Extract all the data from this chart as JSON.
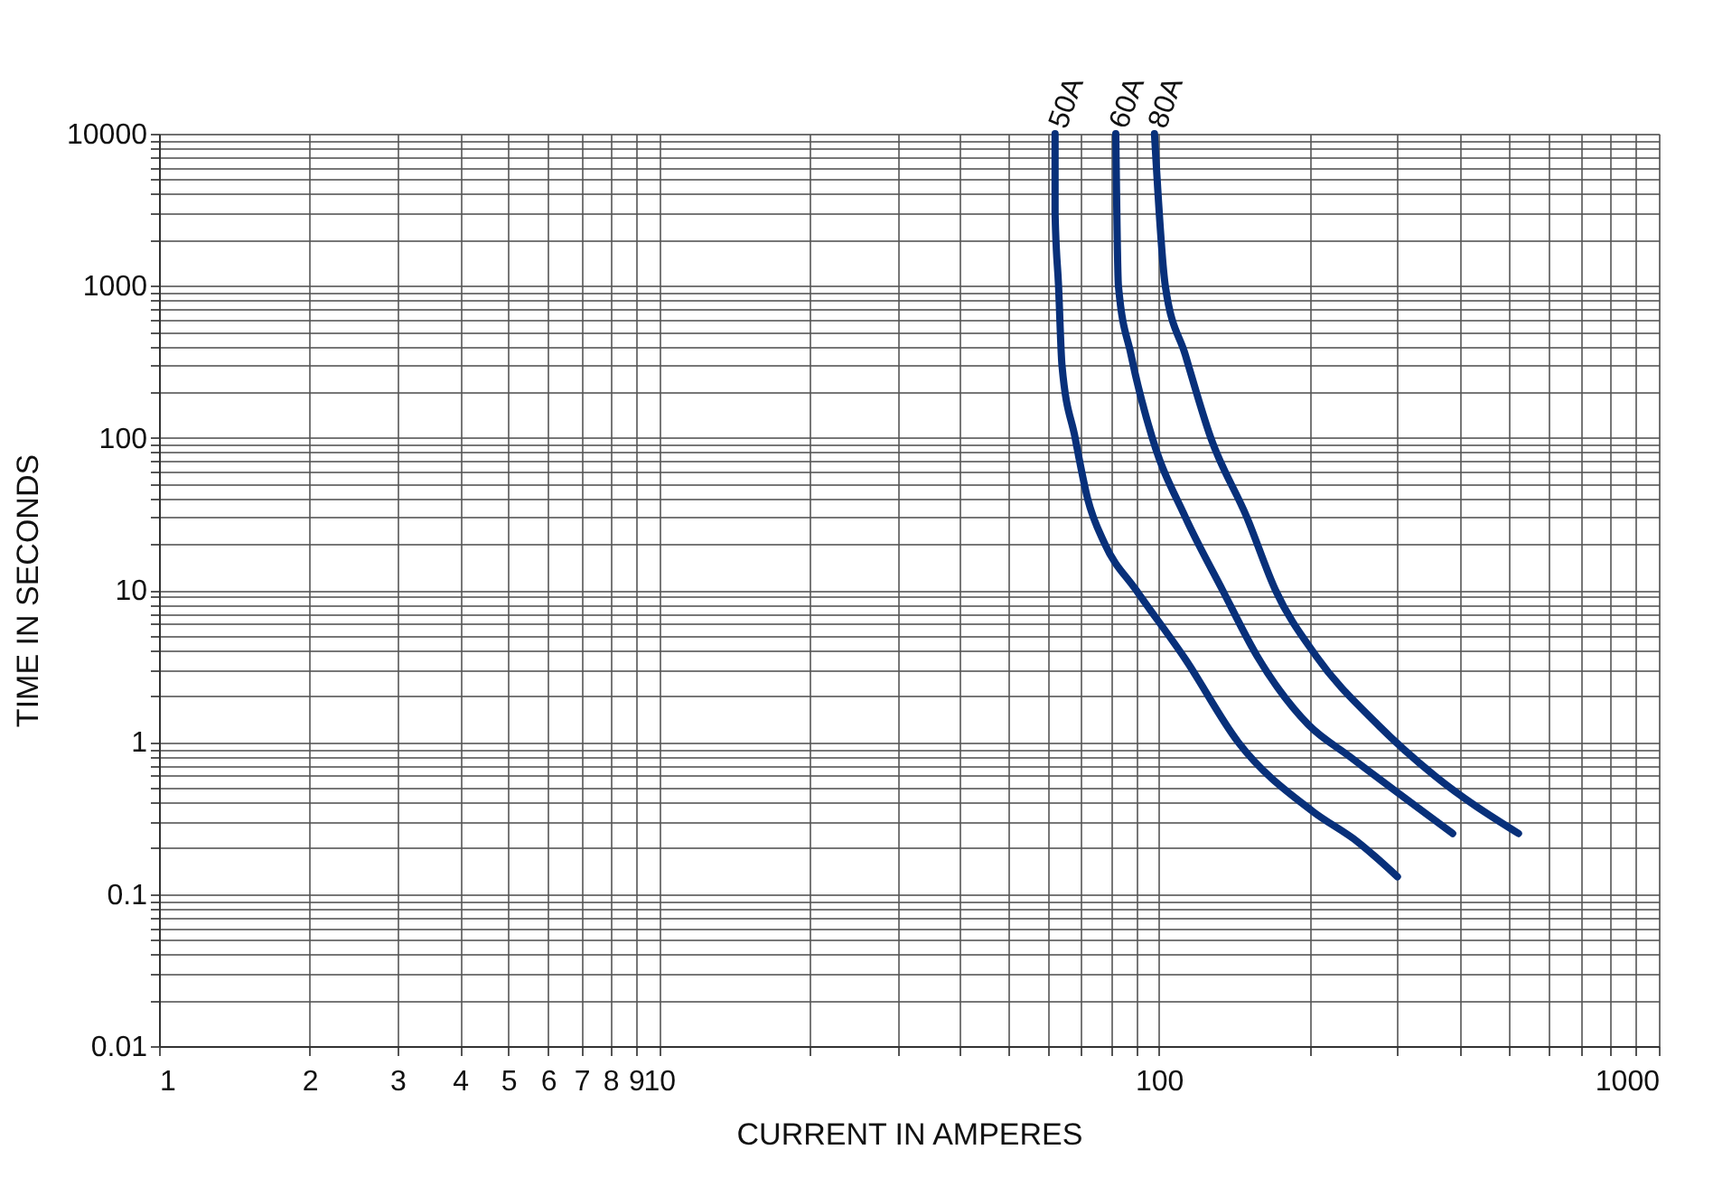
{
  "chart_data": {
    "type": "line",
    "xlabel": "CURRENT IN AMPERES",
    "ylabel": "TIME IN SECONDS",
    "log": "xy",
    "grid": true,
    "legend": false,
    "marker": "none",
    "line_style": "solid",
    "xlim": [
      1,
      1000
    ],
    "ylim": [
      0.01,
      10000
    ],
    "xticks": [
      1,
      2,
      3,
      4,
      5,
      6,
      7,
      8,
      9,
      10,
      {
        "value": 20,
        "label": null
      },
      {
        "value": 30,
        "label": null
      },
      {
        "value": 40,
        "label": null
      },
      {
        "value": 50,
        "label": null
      },
      {
        "value": 60,
        "label": null
      },
      {
        "value": 70,
        "label": null
      },
      {
        "value": 80,
        "label": null
      },
      {
        "value": 90,
        "label": null
      },
      100,
      {
        "value": 200,
        "label": null
      },
      {
        "value": 300,
        "label": null
      },
      {
        "value": 400,
        "label": null
      },
      {
        "value": 500,
        "label": null
      },
      {
        "value": 600,
        "label": null
      },
      {
        "value": 700,
        "label": null
      },
      {
        "value": 800,
        "label": null
      },
      {
        "value": 900,
        "label": null
      },
      1000
    ],
    "yticks": [
      0.01,
      {
        "value": 0.02,
        "label": null
      },
      {
        "value": 0.03,
        "label": null
      },
      {
        "value": 0.04,
        "label": null
      },
      {
        "value": 0.05,
        "label": null
      },
      {
        "value": 0.06,
        "label": null
      },
      {
        "value": 0.07,
        "label": null
      },
      {
        "value": 0.08,
        "label": null
      },
      {
        "value": 0.09,
        "label": null
      },
      0.1,
      {
        "value": 0.2,
        "label": null
      },
      {
        "value": 0.3,
        "label": null
      },
      {
        "value": 0.4,
        "label": null
      },
      {
        "value": 0.5,
        "label": null
      },
      {
        "value": 0.6,
        "label": null
      },
      {
        "value": 0.7,
        "label": null
      },
      {
        "value": 0.8,
        "label": null
      },
      {
        "value": 0.9,
        "label": null
      },
      1,
      {
        "value": 2,
        "label": null
      },
      {
        "value": 3,
        "label": null
      },
      {
        "value": 4,
        "label": null
      },
      {
        "value": 5,
        "label": null
      },
      {
        "value": 6,
        "label": null
      },
      {
        "value": 7,
        "label": null
      },
      {
        "value": 8,
        "label": null
      },
      {
        "value": 9,
        "label": null
      },
      10,
      {
        "value": 20,
        "label": null
      },
      {
        "value": 30,
        "label": null
      },
      {
        "value": 40,
        "label": null
      },
      {
        "value": 50,
        "label": null
      },
      {
        "value": 60,
        "label": null
      },
      {
        "value": 70,
        "label": null
      },
      {
        "value": 80,
        "label": null
      },
      {
        "value": 90,
        "label": null
      },
      100,
      {
        "value": 200,
        "label": null
      },
      {
        "value": 300,
        "label": null
      },
      {
        "value": 400,
        "label": null
      },
      {
        "value": 500,
        "label": null
      },
      {
        "value": 600,
        "label": null
      },
      {
        "value": 700,
        "label": null
      },
      {
        "value": 800,
        "label": null
      },
      {
        "value": 900,
        "label": null
      },
      1000,
      {
        "value": 2000,
        "label": null
      },
      {
        "value": 3000,
        "label": null
      },
      {
        "value": 4000,
        "label": null
      },
      {
        "value": 5000,
        "label": null
      },
      {
        "value": 6000,
        "label": null
      },
      {
        "value": 7000,
        "label": null
      },
      {
        "value": 8000,
        "label": null
      },
      {
        "value": 9000,
        "label": null
      },
      10000
    ],
    "series": [
      {
        "name": "50A",
        "color": "#08307a",
        "x": [
          62,
          62,
          63,
          64,
          68,
          72,
          78,
          90,
          113,
          144,
          203,
          250,
          300
        ],
        "values": [
          10000,
          3000,
          1000,
          300,
          100,
          40,
          20,
          10,
          3.5,
          1,
          0.35,
          0.22,
          0.13
        ]
      },
      {
        "name": "60A",
        "color": "#08307a",
        "x": [
          82,
          83,
          88,
          97,
          113,
          134,
          157,
          199,
          241,
          387
        ],
        "values": [
          10000,
          1000,
          350,
          100,
          30,
          10,
          3.7,
          1.3,
          0.8,
          0.25
        ]
      },
      {
        "name": "80A",
        "color": "#08307a",
        "x": [
          98,
          103,
          113,
          127,
          150,
          171,
          206,
          274,
          356,
          524
        ],
        "values": [
          10000,
          1000,
          350,
          100,
          30,
          10,
          3.7,
          1.3,
          0.6,
          0.25
        ]
      }
    ]
  }
}
